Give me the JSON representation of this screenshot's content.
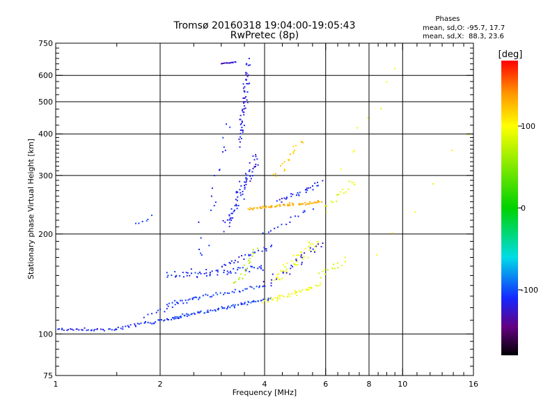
{
  "chart_data": {
    "type": "scatter",
    "title": "Tromsø 20160318 19:04:00-19:05:43",
    "subtitle": "RwPretec (8p)",
    "stats": {
      "heading": "Phases",
      "o_line": "mean, sd,O: -95.7, 17.7",
      "x_line": "mean, sd,X:  88.3, 23.6"
    },
    "xlabel": "Frequency [MHz]",
    "ylabel": "Stationary phase Virtual Height [km]",
    "x_scale": "log",
    "y_scale": "log",
    "xlim": [
      1,
      16
    ],
    "ylim": [
      75,
      750
    ],
    "grid": true,
    "x_ticks": [
      1,
      2,
      4,
      6,
      8,
      10,
      16
    ],
    "y_ticks": [
      75,
      100,
      200,
      300,
      400,
      500,
      600,
      750
    ],
    "colorbar": {
      "label": "[deg]",
      "range": [
        -180,
        180
      ],
      "ticks": [
        100,
        0,
        -100
      ],
      "scale": "rainbow: black (-180) - purple - blue - cyan - green - yellow - orange - red (180)"
    },
    "point_groups": [
      {
        "x": [
          1.0,
          1.5
        ],
        "y": [
          103,
          103
        ],
        "n": 35,
        "phase": -115,
        "jx": 0.02,
        "jy": 0.02
      },
      {
        "x": [
          1.5,
          2.3
        ],
        "y": [
          104,
          112
        ],
        "n": 40,
        "phase": -110,
        "jx": 0.02,
        "jy": 0.03
      },
      {
        "x": [
          2.2,
          4.2
        ],
        "y": [
          112,
          128
        ],
        "n": 75,
        "phase": -105,
        "jx": 0.02,
        "jy": 0.025
      },
      {
        "x": [
          1.8,
          2.6
        ],
        "y": [
          113,
          130
        ],
        "n": 18,
        "phase": -110,
        "jx": 0.03,
        "jy": 0.03
      },
      {
        "x": [
          2.1,
          4.0
        ],
        "y": [
          123,
          140
        ],
        "n": 45,
        "phase": -105,
        "jx": 0.02,
        "jy": 0.03
      },
      {
        "x": [
          2.1,
          4.0
        ],
        "y": [
          150,
          158
        ],
        "n": 60,
        "phase": -110,
        "jx": 0.05,
        "jy": 0.05
      },
      {
        "x": [
          3.0,
          4.2
        ],
        "y": [
          160,
          185
        ],
        "n": 28,
        "phase": -115,
        "jx": 0.04,
        "jy": 0.04
      },
      {
        "x": [
          4.0,
          5.8
        ],
        "y": [
          125,
          140
        ],
        "n": 45,
        "phase": 95,
        "jx": 0.06,
        "jy": 0.04
      },
      {
        "x": [
          4.3,
          5.6
        ],
        "y": [
          145,
          190
        ],
        "n": 45,
        "phase": 95,
        "jx": 0.08,
        "jy": 0.07
      },
      {
        "x": [
          5.8,
          6.8
        ],
        "y": [
          150,
          165
        ],
        "n": 15,
        "phase": 85,
        "jx": 0.05,
        "jy": 0.05
      },
      {
        "x": [
          3.3,
          3.8
        ],
        "y": [
          140,
          180
        ],
        "n": 20,
        "phase": 70,
        "jx": 0.05,
        "jy": 0.06
      },
      {
        "x": [
          4.0,
          6.0
        ],
        "y": [
          140,
          190
        ],
        "n": 30,
        "phase": -120,
        "jx": 0.1,
        "jy": 0.07
      },
      {
        "x": [
          3.6,
          5.8
        ],
        "y": [
          238,
          250
        ],
        "n": 75,
        "phase": 130,
        "jx": 0.04,
        "jy": 0.02
      },
      {
        "x": [
          4.4,
          5.8
        ],
        "y": [
          250,
          285
        ],
        "n": 30,
        "phase": -110,
        "jx": 0.06,
        "jy": 0.05
      },
      {
        "x": [
          3.1,
          3.8
        ],
        "y": [
          210,
          340
        ],
        "n": 70,
        "phase": -115,
        "jx": 0.05,
        "jy": 0.12
      },
      {
        "x": [
          4.3,
          5.2
        ],
        "y": [
          300,
          385
        ],
        "n": 22,
        "phase": 120,
        "jx": 0.08,
        "jy": 0.08
      },
      {
        "x": [
          3.4,
          3.6
        ],
        "y": [
          380,
          650
        ],
        "n": 60,
        "phase": -118,
        "jx": 0.04,
        "jy": 0.1
      },
      {
        "x": [
          3.0,
          3.3
        ],
        "y": [
          650,
          658
        ],
        "n": 15,
        "phase": -125,
        "jx": 0.01,
        "jy": 0.01
      },
      {
        "x": [
          2.5,
          3.2
        ],
        "y": [
          150,
          440
        ],
        "n": 22,
        "phase": -110,
        "jx": 0.12,
        "jy": 0.2
      },
      {
        "x": [
          6.0,
          7.3
        ],
        "y": [
          240,
          290
        ],
        "n": 18,
        "phase": 90,
        "jx": 0.08,
        "jy": 0.06
      },
      {
        "x": [
          6.5,
          9.5
        ],
        "y": [
          300,
          620
        ],
        "n": 8,
        "phase": 95,
        "jx": 0.12,
        "jy": 0.15
      },
      {
        "x": [
          1.7,
          1.9
        ],
        "y": [
          215,
          225
        ],
        "n": 6,
        "phase": -105,
        "jx": 0.03,
        "jy": 0.03
      },
      {
        "x": [
          4.0,
          5.5
        ],
        "y": [
          200,
          240
        ],
        "n": 15,
        "phase": -110,
        "jx": 0.1,
        "jy": 0.05
      },
      {
        "x": [
          8.0,
          16.0
        ],
        "y": [
          170,
          400
        ],
        "n": 6,
        "phase": 110,
        "jx": 0.1,
        "jy": 0.15
      }
    ]
  }
}
